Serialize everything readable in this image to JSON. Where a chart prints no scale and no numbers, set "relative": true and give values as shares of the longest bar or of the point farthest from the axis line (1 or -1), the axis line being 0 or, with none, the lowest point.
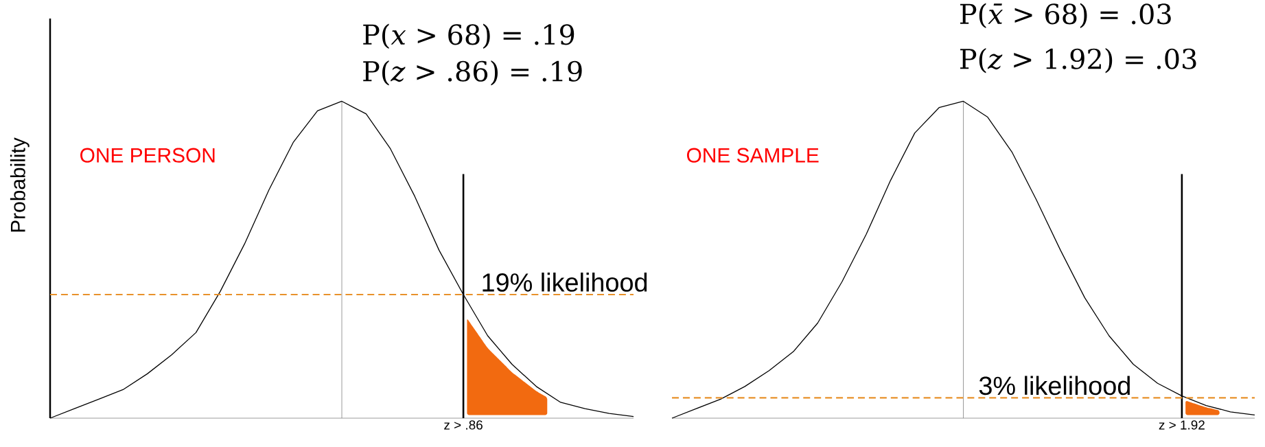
{
  "chart_data": [
    {
      "type": "line",
      "title": "ONE PERSON",
      "ylabel": "Probability",
      "annotations": [
        "P(*x* > 68) =  .19",
        "P(*z* > .86) =  .19",
        "z > .86"
      ],
      "relative": true,
      "marker": "none",
      "categories": [
        null,
        null,
        null,
        null,
        null,
        null,
        null,
        null,
        null,
        null,
        null,
        null,
        null,
        null,
        null,
        null,
        null,
        null,
        null,
        null,
        null,
        null,
        null,
        null,
        null
      ],
      "series": [
        {
          "color": "#000000",
          "values": [
            0.0,
            0.03,
            0.06,
            0.09,
            0.14,
            0.2,
            0.27,
            0.4,
            0.55,
            0.72,
            0.87,
            0.97,
            1,
            0.96,
            0.85,
            0.7,
            0.53,
            0.39,
            0.26,
            0.17,
            0.1,
            0.05,
            0.03,
            0.015,
            0.005
          ]
        }
      ],
      "ref_lines": [
        {
          "axis": "y",
          "value": 0.39,
          "label": "19% likelihood",
          "color": "#e8912a",
          "line_style": "dashed"
        }
      ]
    },
    {
      "type": "line",
      "title": "ONE SAMPLE",
      "annotations": [
        "P(*x̄* > 68) =  .03",
        "P(*z* > 1.92) =  .03",
        "z > 1.92"
      ],
      "relative": true,
      "marker": "none",
      "categories": [
        null,
        null,
        null,
        null,
        null,
        null,
        null,
        null,
        null,
        null,
        null,
        null,
        null,
        null,
        null,
        null,
        null,
        null,
        null,
        null,
        null,
        null,
        null,
        null,
        null
      ],
      "series": [
        {
          "color": "#000000",
          "values": [
            0.0,
            0.03,
            0.06,
            0.1,
            0.15,
            0.21,
            0.3,
            0.43,
            0.58,
            0.75,
            0.9,
            0.98,
            1,
            0.95,
            0.84,
            0.69,
            0.53,
            0.38,
            0.26,
            0.17,
            0.11,
            0.07,
            0.04,
            0.02,
            0.01
          ]
        }
      ],
      "ref_lines": [
        {
          "axis": "y",
          "value": 0.064,
          "label": "3% likelihood",
          "color": "#e8912a",
          "line_style": "dashed"
        }
      ]
    }
  ]
}
